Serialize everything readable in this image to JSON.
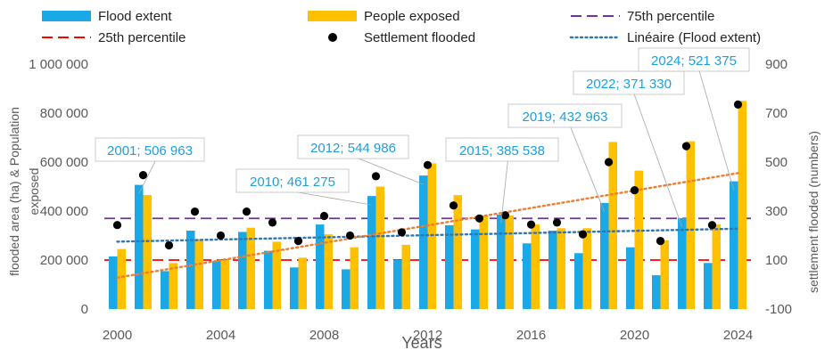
{
  "chart_data": {
    "type": "bar",
    "categories": [
      "2000",
      "2001",
      "2002",
      "2003",
      "2004",
      "2005",
      "2006",
      "2007",
      "2008",
      "2009",
      "2010",
      "2011",
      "2012",
      "2013",
      "2014",
      "2015",
      "2016",
      "2017",
      "2018",
      "2019",
      "2020",
      "2021",
      "2022",
      "2023",
      "2024"
    ],
    "series": [
      {
        "name": "Flood extent",
        "type": "bar",
        "axis": "left",
        "color": "#1aa9e6",
        "values": [
          215000,
          506963,
          155000,
          320000,
          195000,
          315000,
          238000,
          170000,
          345000,
          162000,
          461275,
          200000,
          544986,
          342000,
          325000,
          385538,
          268000,
          320000,
          228000,
          432963,
          252000,
          138000,
          371330,
          188000,
          521375
        ]
      },
      {
        "name": "People exposed",
        "type": "bar",
        "axis": "left",
        "color": "#ffc000",
        "values": [
          245000,
          465000,
          188000,
          285000,
          200000,
          332000,
          275000,
          210000,
          305000,
          252000,
          500000,
          262000,
          595000,
          465000,
          382000,
          382000,
          345000,
          330000,
          330000,
          682000,
          565000,
          280000,
          685000,
          345000,
          850000
        ]
      },
      {
        "name": "Settlement flooded",
        "type": "scatter",
        "axis": "right",
        "color": "#000000",
        "values": [
          243,
          447,
          160,
          298,
          200,
          298,
          253,
          178,
          280,
          200,
          442,
          213,
          488,
          323,
          270,
          283,
          245,
          253,
          205,
          500,
          385,
          178,
          565,
          243,
          735
        ]
      }
    ],
    "reference_lines": [
      {
        "name": "75th percentile",
        "value": 370000,
        "color": "#7030a0",
        "style": "dash"
      },
      {
        "name": "25th percentile",
        "value": 200000,
        "color": "#ff0000",
        "style": "dash"
      }
    ],
    "trendlines": [
      {
        "name": "Linéaire (Flood extent)",
        "color": "#2e75b6",
        "style": "dot",
        "start": 275000,
        "end": 328000,
        "axis": "left"
      },
      {
        "name": "",
        "color": "#ed7d31",
        "style": "dot",
        "start": 128000,
        "end": 555000,
        "axis": "left"
      }
    ],
    "annotations": [
      {
        "label": "2001; 506 963",
        "year": "2001"
      },
      {
        "label": "2010; 461 275",
        "year": "2010"
      },
      {
        "label": "2012; 544 986",
        "year": "2012"
      },
      {
        "label": "2015; 385 538",
        "year": "2015"
      },
      {
        "label": "2019; 432 963",
        "year": "2019"
      },
      {
        "label": "2022; 371 330",
        "year": "2022"
      },
      {
        "label": "2024; 521 375",
        "year": "2024"
      }
    ],
    "y_left": {
      "ticks": [
        "0",
        "200 000",
        "400 000",
        "600 000",
        "800 000",
        "1 000 000"
      ],
      "ylim": [
        0,
        1000000
      ]
    },
    "y_right": {
      "ticks": [
        "-100",
        "100",
        "300",
        "500",
        "700",
        "900"
      ],
      "ylim": [
        -100,
        900
      ]
    },
    "x_ticks": [
      "2000",
      "2004",
      "2008",
      "2012",
      "2016",
      "2020",
      "2024"
    ],
    "xlabel": "Years",
    "ylabel_left": "flooded area  (ha) & Population exposed",
    "ylabel_right": "settlement flooded (numbers)",
    "legend_position": "top",
    "grid": false
  }
}
